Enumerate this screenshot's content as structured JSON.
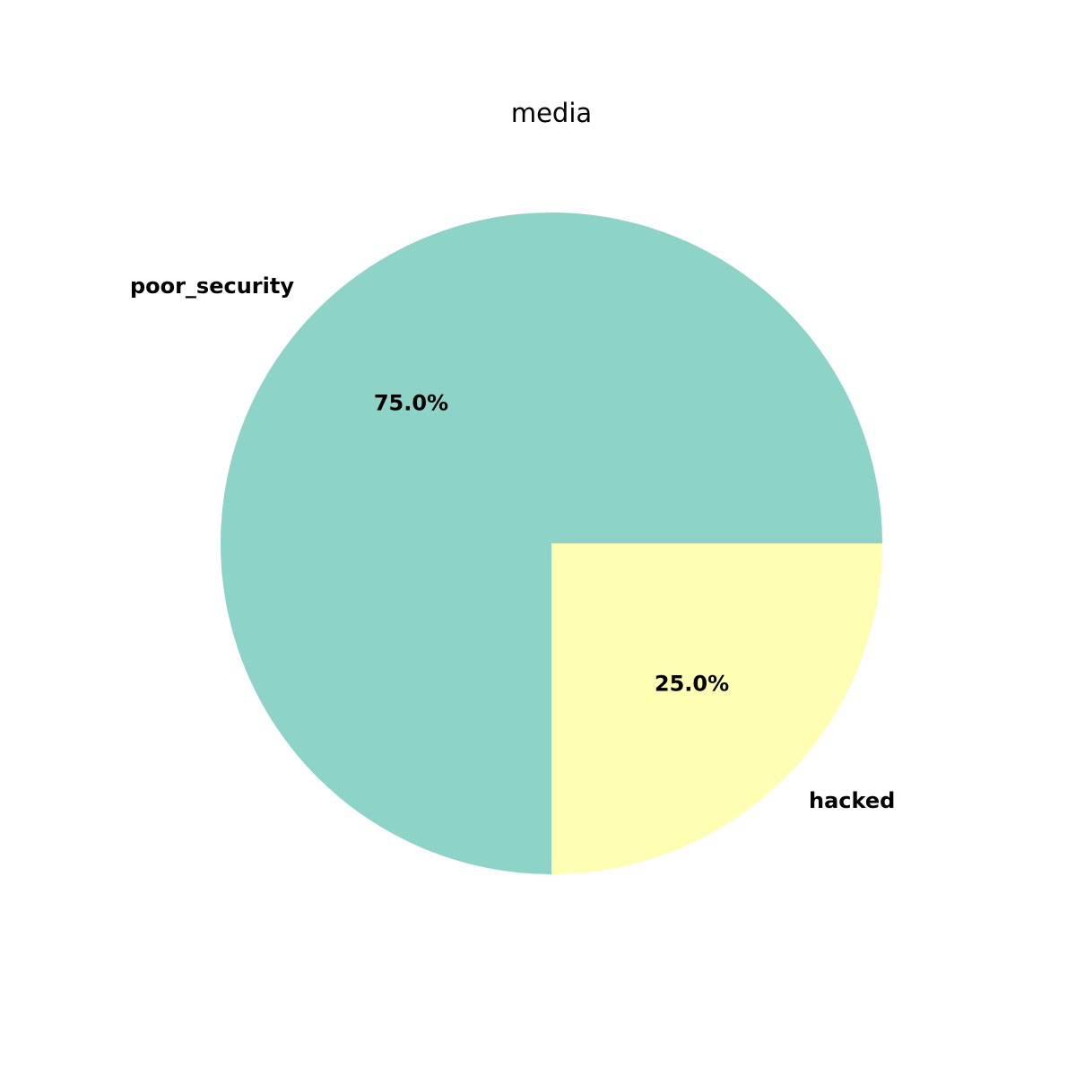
{
  "chart_data": {
    "type": "pie",
    "title": "media",
    "start_angle_deg": 0,
    "direction": "counterclockwise",
    "slices": [
      {
        "label": "poor_security",
        "value": 75.0,
        "pct_label": "75.0%",
        "color": "#8dd3c7"
      },
      {
        "label": "hacked",
        "value": 25.0,
        "pct_label": "25.0%",
        "color": "#ffffb3"
      }
    ]
  }
}
